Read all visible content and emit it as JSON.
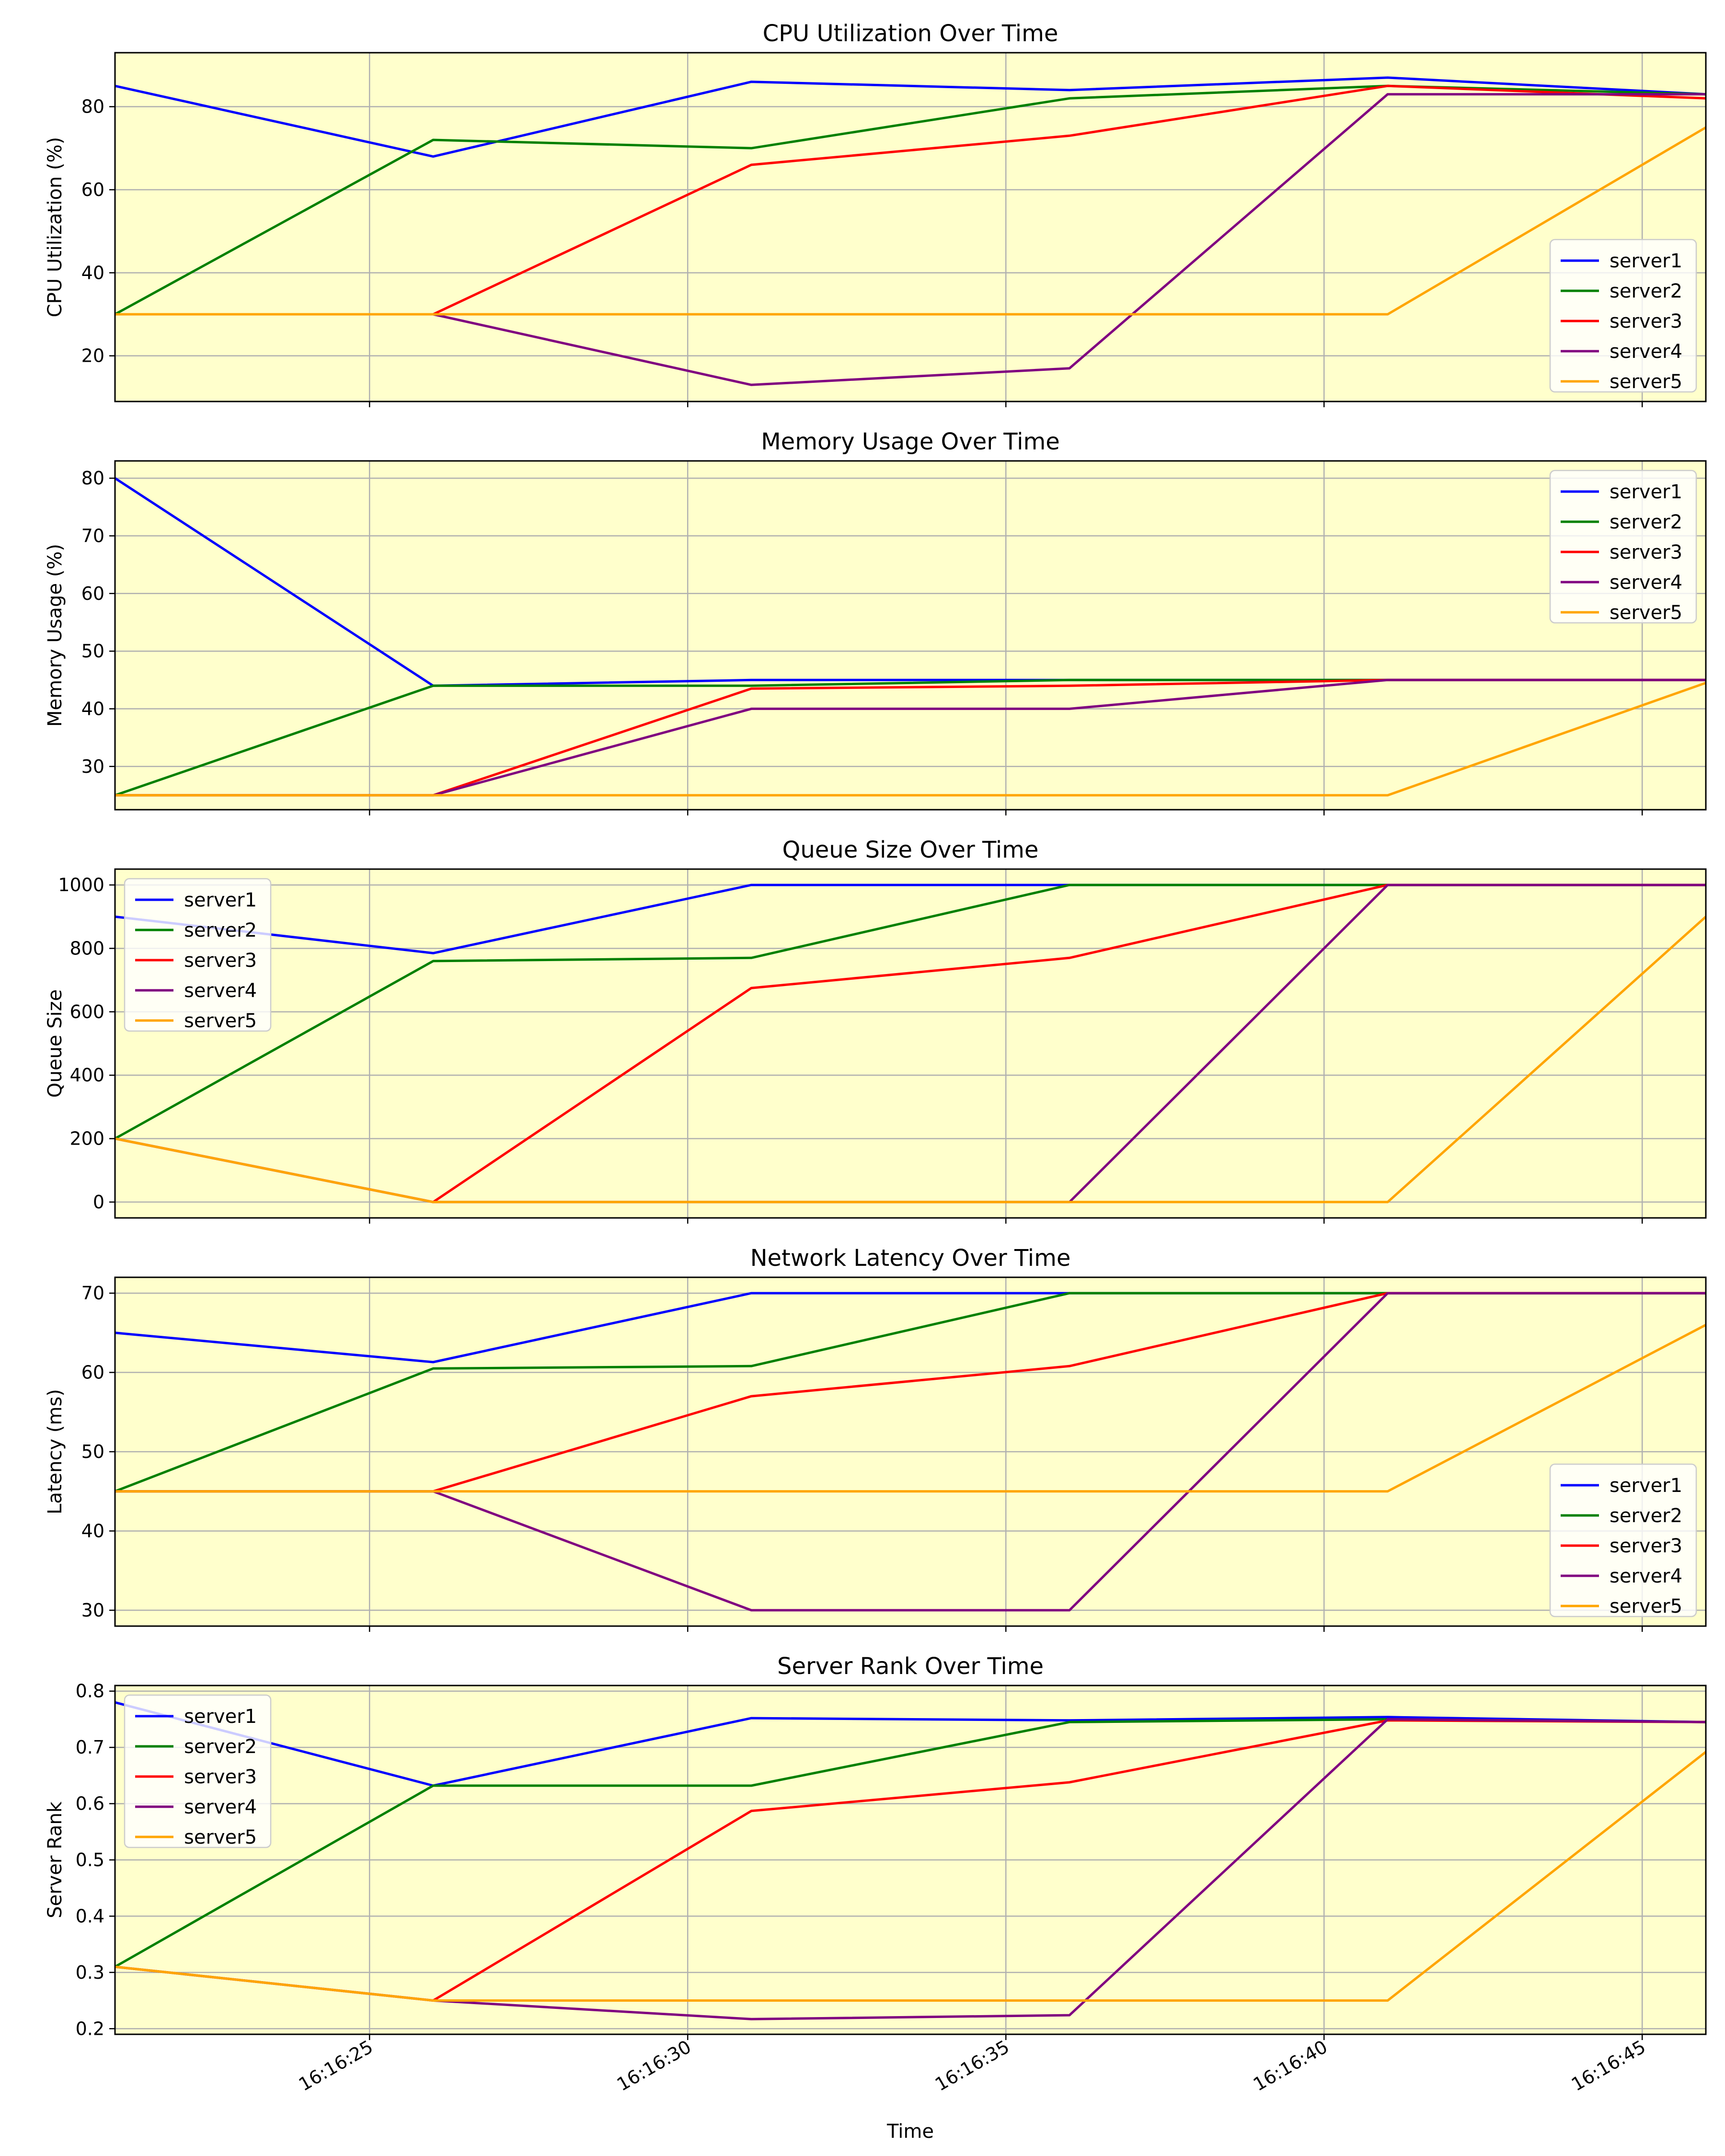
{
  "figure": {
    "background": "#ffffff",
    "axes_background": "#ffffcc",
    "grid_color": "#b0b0b0",
    "xlabel": "Time"
  },
  "chart_data": [
    {
      "type": "line",
      "title": "CPU Utilization Over Time",
      "xlabel": "Time",
      "ylabel": "CPU Utilization (%)",
      "x": [
        "16:16:21",
        "16:16:26",
        "16:16:31",
        "16:16:36",
        "16:16:41",
        "16:16:46"
      ],
      "xlim": [
        "16:16:21",
        "16:16:46"
      ],
      "x_ticks": [
        "16:16:25",
        "16:16:30",
        "16:16:35",
        "16:16:40",
        "16:16:45"
      ],
      "ylim": [
        9,
        93
      ],
      "y_ticks": [
        20,
        40,
        60,
        80
      ],
      "grid": true,
      "legend_position": "lower right",
      "series": [
        {
          "name": "server1",
          "color": "#0000ff",
          "values": [
            85,
            68,
            86,
            84,
            87,
            83
          ]
        },
        {
          "name": "server2",
          "color": "#008000",
          "values": [
            30,
            72,
            70,
            82,
            85,
            83
          ]
        },
        {
          "name": "server3",
          "color": "#ff0000",
          "values": [
            30,
            30,
            66,
            73,
            85,
            82
          ]
        },
        {
          "name": "server4",
          "color": "#800080",
          "values": [
            30,
            30,
            13,
            17,
            83,
            83
          ]
        },
        {
          "name": "server5",
          "color": "#ffa500",
          "values": [
            30,
            30,
            30,
            30,
            30,
            75
          ]
        }
      ]
    },
    {
      "type": "line",
      "title": "Memory Usage Over Time",
      "xlabel": "Time",
      "ylabel": "Memory Usage (%)",
      "x": [
        "16:16:21",
        "16:16:26",
        "16:16:31",
        "16:16:36",
        "16:16:41",
        "16:16:46"
      ],
      "xlim": [
        "16:16:21",
        "16:16:46"
      ],
      "x_ticks": [
        "16:16:25",
        "16:16:30",
        "16:16:35",
        "16:16:40",
        "16:16:45"
      ],
      "ylim": [
        22.5,
        83
      ],
      "y_ticks": [
        30,
        40,
        50,
        60,
        70,
        80
      ],
      "grid": true,
      "legend_position": "upper right",
      "series": [
        {
          "name": "server1",
          "color": "#0000ff",
          "values": [
            80,
            44,
            45,
            45,
            45,
            45
          ]
        },
        {
          "name": "server2",
          "color": "#008000",
          "values": [
            25,
            44,
            44,
            45,
            45,
            45
          ]
        },
        {
          "name": "server3",
          "color": "#ff0000",
          "values": [
            25,
            25,
            43.5,
            44,
            45,
            45
          ]
        },
        {
          "name": "server4",
          "color": "#800080",
          "values": [
            25,
            25,
            40,
            40,
            45,
            45
          ]
        },
        {
          "name": "server5",
          "color": "#ffa500",
          "values": [
            25,
            25,
            25,
            25,
            25,
            44.5
          ]
        }
      ]
    },
    {
      "type": "line",
      "title": "Queue Size Over Time",
      "xlabel": "Time",
      "ylabel": "Queue Size",
      "x": [
        "16:16:21",
        "16:16:26",
        "16:16:31",
        "16:16:36",
        "16:16:41",
        "16:16:46"
      ],
      "xlim": [
        "16:16:21",
        "16:16:46"
      ],
      "x_ticks": [
        "16:16:25",
        "16:16:30",
        "16:16:35",
        "16:16:40",
        "16:16:45"
      ],
      "ylim": [
        -50,
        1050
      ],
      "y_ticks": [
        0,
        200,
        400,
        600,
        800,
        1000
      ],
      "grid": true,
      "legend_position": "upper left",
      "series": [
        {
          "name": "server1",
          "color": "#0000ff",
          "values": [
            900,
            785,
            1000,
            1000,
            1000,
            1000
          ]
        },
        {
          "name": "server2",
          "color": "#008000",
          "values": [
            200,
            760,
            770,
            1000,
            1000,
            1000
          ]
        },
        {
          "name": "server3",
          "color": "#ff0000",
          "values": [
            200,
            0,
            675,
            770,
            1000,
            1000
          ]
        },
        {
          "name": "server4",
          "color": "#800080",
          "values": [
            200,
            0,
            0,
            0,
            1000,
            1000
          ]
        },
        {
          "name": "server5",
          "color": "#ffa500",
          "values": [
            200,
            0,
            0,
            0,
            0,
            900
          ]
        }
      ]
    },
    {
      "type": "line",
      "title": "Network Latency Over Time",
      "xlabel": "Time",
      "ylabel": "Latency (ms)",
      "x": [
        "16:16:21",
        "16:16:26",
        "16:16:31",
        "16:16:36",
        "16:16:41",
        "16:16:46"
      ],
      "xlim": [
        "16:16:21",
        "16:16:46"
      ],
      "x_ticks": [
        "16:16:25",
        "16:16:30",
        "16:16:35",
        "16:16:40",
        "16:16:45"
      ],
      "ylim": [
        28,
        72
      ],
      "y_ticks": [
        30,
        40,
        50,
        60,
        70
      ],
      "grid": true,
      "legend_position": "lower right",
      "series": [
        {
          "name": "server1",
          "color": "#0000ff",
          "values": [
            65,
            61.3,
            70,
            70,
            70,
            70
          ]
        },
        {
          "name": "server2",
          "color": "#008000",
          "values": [
            45,
            60.5,
            60.8,
            70,
            70,
            70
          ]
        },
        {
          "name": "server3",
          "color": "#ff0000",
          "values": [
            45,
            45,
            57,
            60.8,
            70,
            70
          ]
        },
        {
          "name": "server4",
          "color": "#800080",
          "values": [
            45,
            45,
            30,
            30,
            70,
            70
          ]
        },
        {
          "name": "server5",
          "color": "#ffa500",
          "values": [
            45,
            45,
            45,
            45,
            45,
            66
          ]
        }
      ]
    },
    {
      "type": "line",
      "title": "Server Rank Over Time",
      "xlabel": "Time",
      "ylabel": "Server Rank",
      "x": [
        "16:16:21",
        "16:16:26",
        "16:16:31",
        "16:16:36",
        "16:16:41",
        "16:16:46"
      ],
      "xlim": [
        "16:16:21",
        "16:16:46"
      ],
      "x_ticks": [
        "16:16:25",
        "16:16:30",
        "16:16:35",
        "16:16:40",
        "16:16:45"
      ],
      "ylim": [
        0.19,
        0.81
      ],
      "y_ticks": [
        0.2,
        0.3,
        0.4,
        0.5,
        0.6,
        0.7,
        0.8
      ],
      "grid": true,
      "legend_position": "upper left",
      "series": [
        {
          "name": "server1",
          "color": "#0000ff",
          "values": [
            0.78,
            0.632,
            0.752,
            0.748,
            0.754,
            0.745
          ]
        },
        {
          "name": "server2",
          "color": "#008000",
          "values": [
            0.31,
            0.632,
            0.632,
            0.745,
            0.75,
            0.745
          ]
        },
        {
          "name": "server3",
          "color": "#ff0000",
          "values": [
            0.31,
            0.25,
            0.587,
            0.638,
            0.748,
            0.745
          ]
        },
        {
          "name": "server4",
          "color": "#800080",
          "values": [
            0.31,
            0.25,
            0.217,
            0.224,
            0.75,
            0.745
          ]
        },
        {
          "name": "server5",
          "color": "#ffa500",
          "values": [
            0.31,
            0.25,
            0.25,
            0.25,
            0.25,
            0.692
          ]
        }
      ]
    }
  ]
}
